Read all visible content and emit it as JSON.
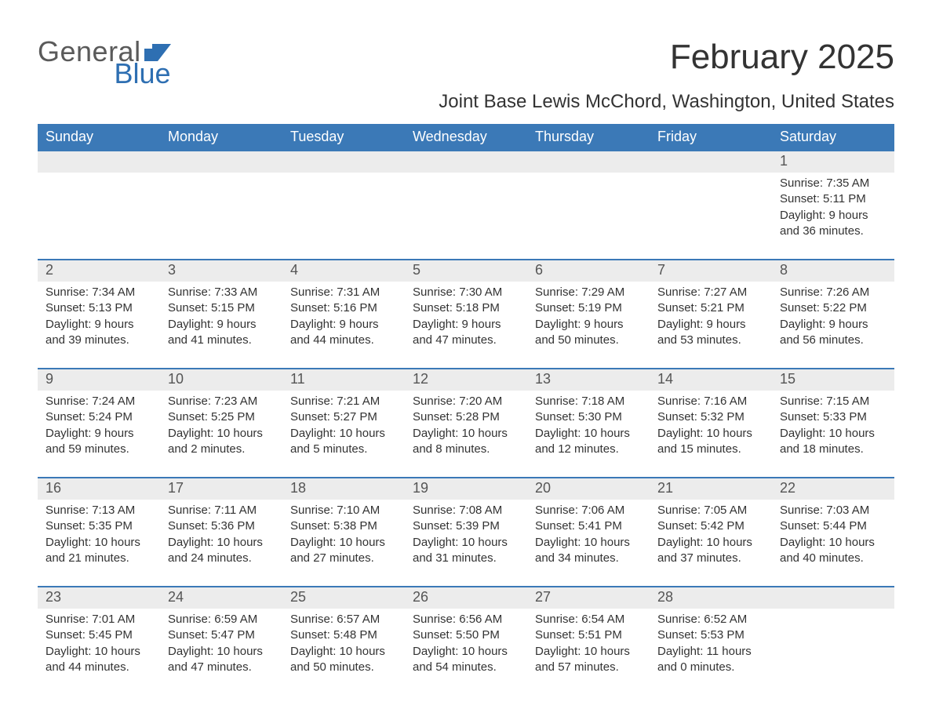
{
  "logo": {
    "general": "General",
    "blue": "Blue"
  },
  "title": "February 2025",
  "subtitle": "Joint Base Lewis McChord, Washington, United States",
  "colors": {
    "header_bg": "#3b79b7",
    "header_text": "#ffffff",
    "daynum_bg": "#ececec",
    "week_border": "#3b79b7",
    "body_text": "#333333",
    "logo_gray": "#5a5a5a",
    "logo_blue": "#2e6fb2",
    "background": "#ffffff"
  },
  "typography": {
    "month_title_fontsize": 44,
    "subtitle_fontsize": 24,
    "dow_fontsize": 18,
    "daynum_fontsize": 18,
    "daytext_fontsize": 15,
    "logo_fontsize": 36
  },
  "days_of_week": [
    "Sunday",
    "Monday",
    "Tuesday",
    "Wednesday",
    "Thursday",
    "Friday",
    "Saturday"
  ],
  "weeks": [
    {
      "nums": [
        "",
        "",
        "",
        "",
        "",
        "",
        "1"
      ],
      "cells": [
        "",
        "",
        "",
        "",
        "",
        "",
        "Sunrise: 7:35 AM\nSunset: 5:11 PM\nDaylight: 9 hours and 36 minutes."
      ]
    },
    {
      "nums": [
        "2",
        "3",
        "4",
        "5",
        "6",
        "7",
        "8"
      ],
      "cells": [
        "Sunrise: 7:34 AM\nSunset: 5:13 PM\nDaylight: 9 hours and 39 minutes.",
        "Sunrise: 7:33 AM\nSunset: 5:15 PM\nDaylight: 9 hours and 41 minutes.",
        "Sunrise: 7:31 AM\nSunset: 5:16 PM\nDaylight: 9 hours and 44 minutes.",
        "Sunrise: 7:30 AM\nSunset: 5:18 PM\nDaylight: 9 hours and 47 minutes.",
        "Sunrise: 7:29 AM\nSunset: 5:19 PM\nDaylight: 9 hours and 50 minutes.",
        "Sunrise: 7:27 AM\nSunset: 5:21 PM\nDaylight: 9 hours and 53 minutes.",
        "Sunrise: 7:26 AM\nSunset: 5:22 PM\nDaylight: 9 hours and 56 minutes."
      ]
    },
    {
      "nums": [
        "9",
        "10",
        "11",
        "12",
        "13",
        "14",
        "15"
      ],
      "cells": [
        "Sunrise: 7:24 AM\nSunset: 5:24 PM\nDaylight: 9 hours and 59 minutes.",
        "Sunrise: 7:23 AM\nSunset: 5:25 PM\nDaylight: 10 hours and 2 minutes.",
        "Sunrise: 7:21 AM\nSunset: 5:27 PM\nDaylight: 10 hours and 5 minutes.",
        "Sunrise: 7:20 AM\nSunset: 5:28 PM\nDaylight: 10 hours and 8 minutes.",
        "Sunrise: 7:18 AM\nSunset: 5:30 PM\nDaylight: 10 hours and 12 minutes.",
        "Sunrise: 7:16 AM\nSunset: 5:32 PM\nDaylight: 10 hours and 15 minutes.",
        "Sunrise: 7:15 AM\nSunset: 5:33 PM\nDaylight: 10 hours and 18 minutes."
      ]
    },
    {
      "nums": [
        "16",
        "17",
        "18",
        "19",
        "20",
        "21",
        "22"
      ],
      "cells": [
        "Sunrise: 7:13 AM\nSunset: 5:35 PM\nDaylight: 10 hours and 21 minutes.",
        "Sunrise: 7:11 AM\nSunset: 5:36 PM\nDaylight: 10 hours and 24 minutes.",
        "Sunrise: 7:10 AM\nSunset: 5:38 PM\nDaylight: 10 hours and 27 minutes.",
        "Sunrise: 7:08 AM\nSunset: 5:39 PM\nDaylight: 10 hours and 31 minutes.",
        "Sunrise: 7:06 AM\nSunset: 5:41 PM\nDaylight: 10 hours and 34 minutes.",
        "Sunrise: 7:05 AM\nSunset: 5:42 PM\nDaylight: 10 hours and 37 minutes.",
        "Sunrise: 7:03 AM\nSunset: 5:44 PM\nDaylight: 10 hours and 40 minutes."
      ]
    },
    {
      "nums": [
        "23",
        "24",
        "25",
        "26",
        "27",
        "28",
        ""
      ],
      "cells": [
        "Sunrise: 7:01 AM\nSunset: 5:45 PM\nDaylight: 10 hours and 44 minutes.",
        "Sunrise: 6:59 AM\nSunset: 5:47 PM\nDaylight: 10 hours and 47 minutes.",
        "Sunrise: 6:57 AM\nSunset: 5:48 PM\nDaylight: 10 hours and 50 minutes.",
        "Sunrise: 6:56 AM\nSunset: 5:50 PM\nDaylight: 10 hours and 54 minutes.",
        "Sunrise: 6:54 AM\nSunset: 5:51 PM\nDaylight: 10 hours and 57 minutes.",
        "Sunrise: 6:52 AM\nSunset: 5:53 PM\nDaylight: 11 hours and 0 minutes.",
        ""
      ]
    }
  ]
}
